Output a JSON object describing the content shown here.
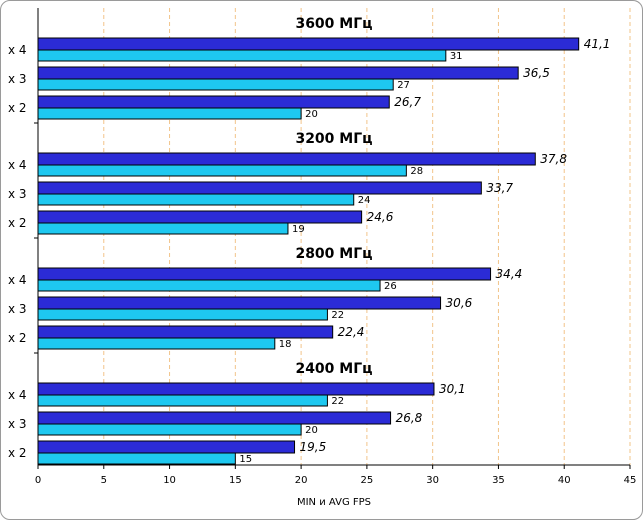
{
  "chart_data": {
    "type": "bar",
    "orientation": "horizontal",
    "xlabel": "MIN и AVG FPS",
    "xlim": [
      0,
      45
    ],
    "xticks": [
      0,
      5,
      10,
      15,
      20,
      25,
      30,
      35,
      40,
      45
    ],
    "grid": true,
    "series": [
      {
        "name": "AVG",
        "color": "#2b2bd6"
      },
      {
        "name": "MIN",
        "color": "#1ec8f0"
      }
    ],
    "groups": [
      {
        "title": "3600 МГц",
        "rows": [
          {
            "category": "x 4",
            "avg": 41.1,
            "avg_label": "41,1",
            "min": 31,
            "min_label": "31"
          },
          {
            "category": "x 3",
            "avg": 36.5,
            "avg_label": "36,5",
            "min": 27,
            "min_label": "27"
          },
          {
            "category": "x 2",
            "avg": 26.7,
            "avg_label": "26,7",
            "min": 20,
            "min_label": "20"
          }
        ]
      },
      {
        "title": "3200 МГц",
        "rows": [
          {
            "category": "x 4",
            "avg": 37.8,
            "avg_label": "37,8",
            "min": 28,
            "min_label": "28"
          },
          {
            "category": "x 3",
            "avg": 33.7,
            "avg_label": "33,7",
            "min": 24,
            "min_label": "24"
          },
          {
            "category": "x 2",
            "avg": 24.6,
            "avg_label": "24,6",
            "min": 19,
            "min_label": "19"
          }
        ]
      },
      {
        "title": "2800 МГц",
        "rows": [
          {
            "category": "x 4",
            "avg": 34.4,
            "avg_label": "34,4",
            "min": 26,
            "min_label": "26"
          },
          {
            "category": "x 3",
            "avg": 30.6,
            "avg_label": "30,6",
            "min": 22,
            "min_label": "22"
          },
          {
            "category": "x 2",
            "avg": 22.4,
            "avg_label": "22,4",
            "min": 18,
            "min_label": "18"
          }
        ]
      },
      {
        "title": "2400 МГц",
        "rows": [
          {
            "category": "x 4",
            "avg": 30.1,
            "avg_label": "30,1",
            "min": 22,
            "min_label": "22"
          },
          {
            "category": "x 3",
            "avg": 26.8,
            "avg_label": "26,8",
            "min": 20,
            "min_label": "20"
          },
          {
            "category": "x 2",
            "avg": 19.5,
            "avg_label": "19,5",
            "min": 15,
            "min_label": "15"
          }
        ]
      }
    ]
  }
}
